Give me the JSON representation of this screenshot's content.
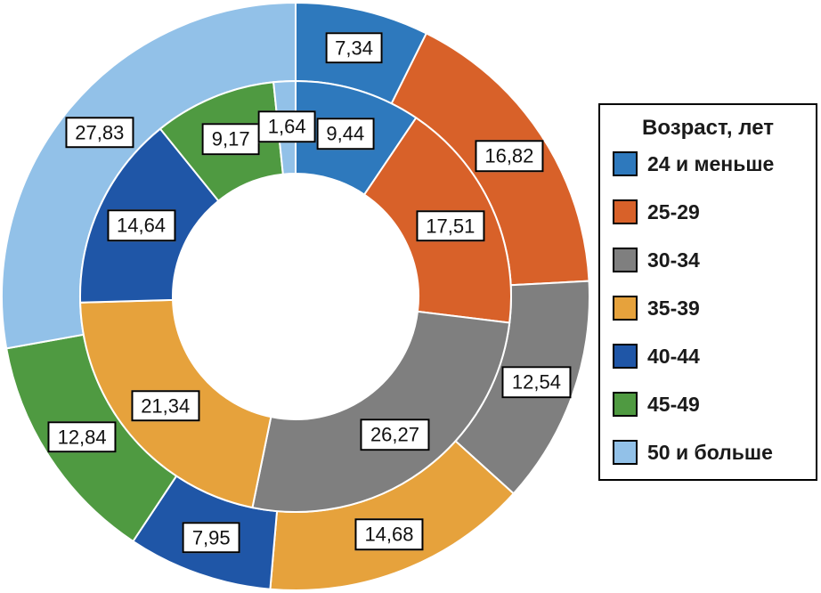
{
  "chart_data": {
    "type": "donut-nested",
    "title": "",
    "legend": {
      "title": "Возраст, лет",
      "position": "right"
    },
    "categories": [
      "24 и меньше",
      "25-29",
      "30-34",
      "35-39",
      "40-44",
      "45-49",
      "50 и больше"
    ],
    "colors": [
      "#2E79BD",
      "#D86129",
      "#7F7F7F",
      "#E6A23C",
      "#1F56A7",
      "#4F9A41",
      "#92C1E8"
    ],
    "rings": [
      {
        "name": "outer",
        "values": [
          7.34,
          16.82,
          12.54,
          14.68,
          7.95,
          12.84,
          27.83
        ],
        "labels": [
          "7,34",
          "16,82",
          "12,54",
          "14,68",
          "7,95",
          "12,84",
          "27,83"
        ]
      },
      {
        "name": "inner",
        "values": [
          9.44,
          17.51,
          26.27,
          21.34,
          14.64,
          9.17,
          1.64
        ],
        "labels": [
          "9,44",
          "17,51",
          "26,27",
          "21,34",
          "14,64",
          "9,17",
          "1,64"
        ]
      }
    ]
  }
}
